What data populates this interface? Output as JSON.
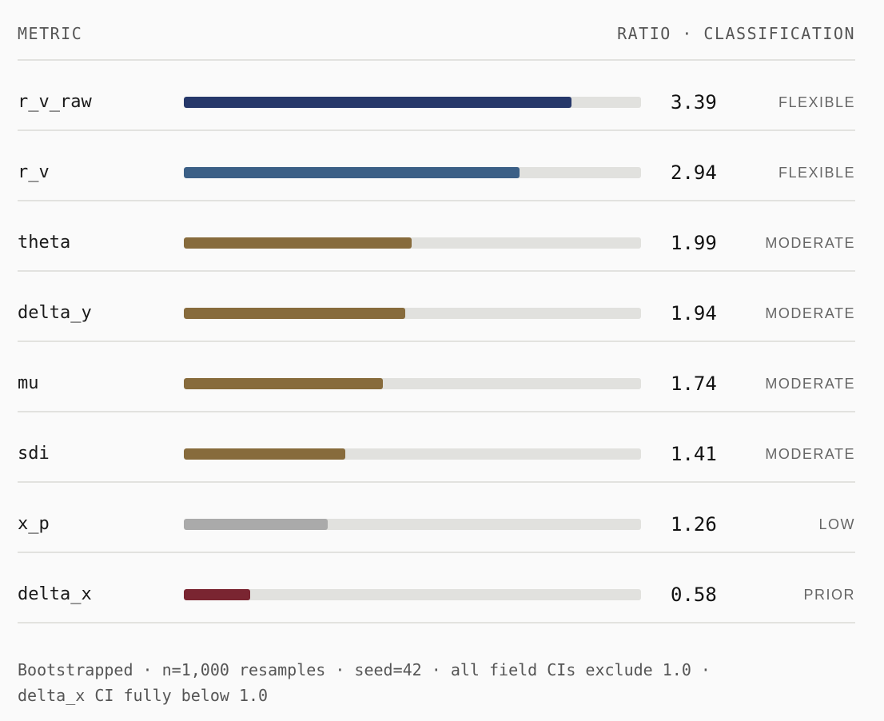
{
  "header": {
    "left": "METRIC",
    "right": "RATIO · CLASSIFICATION"
  },
  "chart_data": {
    "type": "bar",
    "orientation": "horizontal",
    "xlim": [
      0,
      4
    ],
    "grid": false,
    "categories": [
      "r_v_raw",
      "r_v",
      "theta",
      "delta_y",
      "mu",
      "sdi",
      "x_p",
      "delta_x"
    ],
    "values": [
      3.39,
      2.94,
      1.99,
      1.94,
      1.74,
      1.41,
      1.26,
      0.58
    ],
    "value_labels": [
      "3.39",
      "2.94",
      "1.99",
      "1.94",
      "1.74",
      "1.41",
      "1.26",
      "0.58"
    ],
    "classifications": [
      "FLEXIBLE",
      "FLEXIBLE",
      "MODERATE",
      "MODERATE",
      "MODERATE",
      "MODERATE",
      "LOW",
      "PRIOR"
    ],
    "bar_colors": [
      "#26386a",
      "#3b5f86",
      "#876b3c",
      "#876b3c",
      "#876b3c",
      "#876b3c",
      "#aaaaaa",
      "#7a2531"
    ],
    "track_color": "#e1e1de"
  },
  "footer": {
    "line1": "Bootstrapped · n=1,000 resamples · seed=42 · all field CIs exclude 1.0 ·",
    "line2": "delta_x CI fully below 1.0"
  }
}
